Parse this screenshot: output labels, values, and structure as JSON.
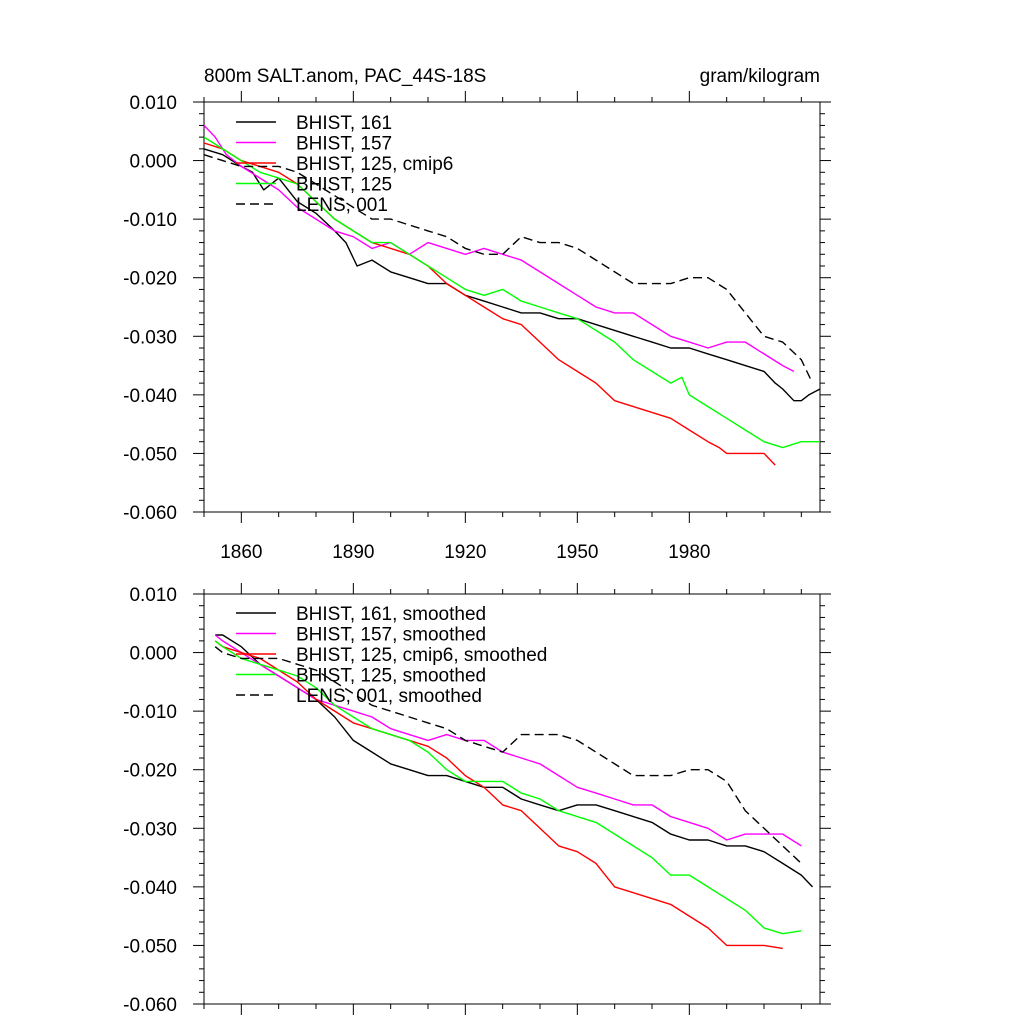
{
  "chart_data": [
    {
      "type": "line",
      "title": "800m SALT.anom, PAC_44S-18S",
      "units": "gram/kilogram",
      "xlim": [
        1850,
        2015
      ],
      "ylim": [
        -0.06,
        0.01
      ],
      "xticks": [
        1860,
        1890,
        1920,
        1950,
        1980
      ],
      "xtick_labels": [
        "1860",
        "1890",
        "1920",
        "1950",
        "1980"
      ],
      "yticks": [
        0.01,
        0.0,
        -0.01,
        -0.02,
        -0.03,
        -0.04,
        -0.05,
        -0.06
      ],
      "ytick_labels": [
        "0.010",
        "0.000",
        "-0.010",
        "-0.020",
        "-0.030",
        "-0.040",
        "-0.050",
        "-0.060"
      ],
      "grid": false,
      "legend_placement": "top-left",
      "series": [
        {
          "name": "BHIST, 161",
          "color": "#000000",
          "dash": "solid",
          "x": [
            1850,
            1855,
            1860,
            1863,
            1866,
            1870,
            1875,
            1880,
            1885,
            1888,
            1891,
            1895,
            1900,
            1905,
            1910,
            1915,
            1920,
            1925,
            1930,
            1935,
            1940,
            1945,
            1950,
            1955,
            1960,
            1965,
            1970,
            1975,
            1980,
            1985,
            1990,
            1995,
            2000,
            2003,
            2005,
            2008,
            2010,
            2012,
            2015
          ],
          "y": [
            0.002,
            0.001,
            -0.001,
            -0.002,
            -0.005,
            -0.003,
            -0.007,
            -0.009,
            -0.012,
            -0.014,
            -0.018,
            -0.017,
            -0.019,
            -0.02,
            -0.021,
            -0.021,
            -0.023,
            -0.024,
            -0.025,
            -0.026,
            -0.026,
            -0.027,
            -0.027,
            -0.028,
            -0.029,
            -0.03,
            -0.031,
            -0.032,
            -0.032,
            -0.033,
            -0.034,
            -0.035,
            -0.036,
            -0.038,
            -0.039,
            -0.041,
            -0.041,
            -0.04,
            -0.039
          ]
        },
        {
          "name": "BHIST, 157",
          "color": "#ff00ff",
          "dash": "solid",
          "x": [
            1850,
            1853,
            1856,
            1860,
            1865,
            1870,
            1875,
            1880,
            1885,
            1890,
            1895,
            1900,
            1905,
            1910,
            1915,
            1920,
            1925,
            1930,
            1935,
            1940,
            1945,
            1950,
            1955,
            1960,
            1965,
            1970,
            1975,
            1980,
            1985,
            1990,
            1995,
            2000,
            2005,
            2008
          ],
          "y": [
            0.006,
            0.004,
            0.001,
            -0.001,
            -0.003,
            -0.005,
            -0.008,
            -0.01,
            -0.012,
            -0.013,
            -0.015,
            -0.014,
            -0.016,
            -0.014,
            -0.015,
            -0.016,
            -0.015,
            -0.016,
            -0.017,
            -0.019,
            -0.021,
            -0.023,
            -0.025,
            -0.026,
            -0.026,
            -0.028,
            -0.03,
            -0.031,
            -0.032,
            -0.031,
            -0.031,
            -0.033,
            -0.035,
            -0.036
          ]
        },
        {
          "name": "BHIST, 125, cmip6",
          "color": "#ff0000",
          "dash": "solid",
          "x": [
            1850,
            1855,
            1860,
            1865,
            1870,
            1875,
            1880,
            1885,
            1890,
            1895,
            1900,
            1905,
            1910,
            1915,
            1920,
            1925,
            1930,
            1935,
            1940,
            1945,
            1950,
            1955,
            1960,
            1965,
            1970,
            1975,
            1980,
            1985,
            1988,
            1990,
            1995,
            2000,
            2003
          ],
          "y": [
            0.003,
            0.002,
            0.0,
            -0.001,
            -0.002,
            -0.004,
            -0.007,
            -0.01,
            -0.012,
            -0.014,
            -0.015,
            -0.016,
            -0.018,
            -0.021,
            -0.023,
            -0.025,
            -0.027,
            -0.028,
            -0.031,
            -0.034,
            -0.036,
            -0.038,
            -0.041,
            -0.042,
            -0.043,
            -0.044,
            -0.046,
            -0.048,
            -0.049,
            -0.05,
            -0.05,
            -0.05,
            -0.052
          ]
        },
        {
          "name": "BHIST, 125",
          "color": "#00ff00",
          "dash": "solid",
          "x": [
            1850,
            1855,
            1860,
            1865,
            1870,
            1875,
            1880,
            1885,
            1890,
            1895,
            1900,
            1905,
            1910,
            1915,
            1920,
            1925,
            1930,
            1935,
            1940,
            1945,
            1950,
            1955,
            1960,
            1965,
            1970,
            1975,
            1978,
            1980,
            1985,
            1990,
            1995,
            2000,
            2005,
            2010,
            2015
          ],
          "y": [
            0.004,
            0.002,
            0.0,
            -0.002,
            -0.003,
            -0.004,
            -0.007,
            -0.01,
            -0.012,
            -0.014,
            -0.014,
            -0.016,
            -0.018,
            -0.02,
            -0.022,
            -0.023,
            -0.022,
            -0.024,
            -0.025,
            -0.026,
            -0.027,
            -0.029,
            -0.031,
            -0.034,
            -0.036,
            -0.038,
            -0.037,
            -0.04,
            -0.042,
            -0.044,
            -0.046,
            -0.048,
            -0.049,
            -0.048,
            -0.048
          ]
        },
        {
          "name": "LENS, 001",
          "color": "#000000",
          "dash": "dashed",
          "x": [
            1850,
            1855,
            1860,
            1865,
            1870,
            1875,
            1880,
            1885,
            1890,
            1895,
            1900,
            1905,
            1910,
            1915,
            1920,
            1925,
            1930,
            1935,
            1940,
            1945,
            1950,
            1955,
            1960,
            1965,
            1970,
            1975,
            1980,
            1985,
            1990,
            1995,
            2000,
            2005,
            2010,
            2013
          ],
          "y": [
            0.001,
            0.0,
            -0.001,
            -0.001,
            -0.001,
            -0.002,
            -0.004,
            -0.006,
            -0.008,
            -0.01,
            -0.01,
            -0.011,
            -0.012,
            -0.013,
            -0.015,
            -0.016,
            -0.016,
            -0.013,
            -0.014,
            -0.014,
            -0.015,
            -0.017,
            -0.019,
            -0.021,
            -0.021,
            -0.021,
            -0.02,
            -0.02,
            -0.022,
            -0.026,
            -0.03,
            -0.031,
            -0.034,
            -0.038
          ]
        }
      ]
    },
    {
      "type": "line",
      "title": "",
      "xlim": [
        1850,
        2015
      ],
      "ylim": [
        -0.06,
        0.01
      ],
      "xticks": [
        1860,
        1890,
        1920,
        1950,
        1980
      ],
      "xtick_labels": [],
      "yticks": [
        0.01,
        0.0,
        -0.01,
        -0.02,
        -0.03,
        -0.04,
        -0.05,
        -0.06
      ],
      "ytick_labels": [
        "0.010",
        "0.000",
        "-0.010",
        "-0.020",
        "-0.030",
        "-0.040",
        "-0.050",
        "-0.060"
      ],
      "grid": false,
      "legend_placement": "top-left",
      "series": [
        {
          "name": "BHIST, 161, smoothed",
          "color": "#000000",
          "dash": "solid",
          "x": [
            1853,
            1855,
            1860,
            1865,
            1870,
            1875,
            1880,
            1885,
            1890,
            1895,
            1900,
            1905,
            1910,
            1915,
            1920,
            1925,
            1930,
            1935,
            1940,
            1945,
            1950,
            1955,
            1960,
            1965,
            1970,
            1975,
            1980,
            1985,
            1990,
            1995,
            2000,
            2005,
            2010,
            2013
          ],
          "y": [
            0.003,
            0.003,
            0.001,
            -0.002,
            -0.004,
            -0.006,
            -0.008,
            -0.011,
            -0.015,
            -0.017,
            -0.019,
            -0.02,
            -0.021,
            -0.021,
            -0.022,
            -0.023,
            -0.023,
            -0.025,
            -0.026,
            -0.027,
            -0.026,
            -0.026,
            -0.027,
            -0.028,
            -0.029,
            -0.031,
            -0.032,
            -0.032,
            -0.033,
            -0.033,
            -0.034,
            -0.036,
            -0.038,
            -0.04
          ]
        },
        {
          "name": "BHIST, 157, smoothed",
          "color": "#ff00ff",
          "dash": "solid",
          "x": [
            1853,
            1855,
            1860,
            1865,
            1870,
            1875,
            1880,
            1885,
            1890,
            1895,
            1900,
            1905,
            1910,
            1915,
            1920,
            1925,
            1930,
            1935,
            1940,
            1945,
            1950,
            1955,
            1960,
            1965,
            1970,
            1975,
            1980,
            1985,
            1990,
            1995,
            2000,
            2005,
            2010
          ],
          "y": [
            0.003,
            0.002,
            0.0,
            -0.002,
            -0.004,
            -0.006,
            -0.008,
            -0.009,
            -0.01,
            -0.011,
            -0.013,
            -0.014,
            -0.015,
            -0.014,
            -0.015,
            -0.015,
            -0.017,
            -0.018,
            -0.019,
            -0.021,
            -0.023,
            -0.024,
            -0.025,
            -0.026,
            -0.026,
            -0.028,
            -0.029,
            -0.03,
            -0.032,
            -0.031,
            -0.031,
            -0.031,
            -0.033
          ]
        },
        {
          "name": "BHIST, 125, cmip6, smoothed",
          "color": "#ff0000",
          "dash": "solid",
          "x": [
            1853,
            1855,
            1860,
            1865,
            1870,
            1875,
            1880,
            1885,
            1890,
            1895,
            1900,
            1905,
            1910,
            1915,
            1920,
            1925,
            1930,
            1935,
            1940,
            1945,
            1950,
            1955,
            1960,
            1965,
            1970,
            1975,
            1980,
            1985,
            1990,
            1995,
            2000,
            2005
          ],
          "y": [
            0.002,
            0.001,
            0.0,
            -0.001,
            -0.003,
            -0.005,
            -0.008,
            -0.01,
            -0.012,
            -0.013,
            -0.014,
            -0.015,
            -0.016,
            -0.018,
            -0.021,
            -0.023,
            -0.026,
            -0.027,
            -0.03,
            -0.033,
            -0.034,
            -0.036,
            -0.04,
            -0.041,
            -0.042,
            -0.043,
            -0.045,
            -0.047,
            -0.05,
            -0.05,
            -0.05,
            -0.0505
          ]
        },
        {
          "name": "BHIST, 125, smoothed",
          "color": "#00ff00",
          "dash": "solid",
          "x": [
            1853,
            1855,
            1860,
            1865,
            1870,
            1875,
            1880,
            1885,
            1890,
            1895,
            1900,
            1905,
            1910,
            1915,
            1920,
            1925,
            1930,
            1935,
            1940,
            1945,
            1950,
            1955,
            1960,
            1965,
            1970,
            1975,
            1980,
            1985,
            1990,
            1995,
            2000,
            2005,
            2010
          ],
          "y": [
            0.002,
            0.001,
            -0.001,
            -0.002,
            -0.003,
            -0.004,
            -0.006,
            -0.009,
            -0.011,
            -0.013,
            -0.014,
            -0.015,
            -0.017,
            -0.02,
            -0.022,
            -0.022,
            -0.022,
            -0.024,
            -0.025,
            -0.027,
            -0.028,
            -0.029,
            -0.031,
            -0.033,
            -0.035,
            -0.038,
            -0.038,
            -0.04,
            -0.042,
            -0.044,
            -0.047,
            -0.048,
            -0.0475
          ]
        },
        {
          "name": "LENS, 001, smoothed",
          "color": "#000000",
          "dash": "dashed",
          "x": [
            1853,
            1855,
            1860,
            1865,
            1870,
            1875,
            1880,
            1885,
            1890,
            1895,
            1900,
            1905,
            1910,
            1915,
            1920,
            1925,
            1930,
            1935,
            1940,
            1945,
            1950,
            1955,
            1960,
            1965,
            1970,
            1975,
            1980,
            1985,
            1990,
            1995,
            2000,
            2005,
            2010
          ],
          "y": [
            0.001,
            0.0,
            -0.001,
            -0.001,
            -0.001,
            -0.002,
            -0.003,
            -0.005,
            -0.007,
            -0.009,
            -0.01,
            -0.011,
            -0.012,
            -0.013,
            -0.015,
            -0.016,
            -0.017,
            -0.014,
            -0.014,
            -0.014,
            -0.015,
            -0.017,
            -0.019,
            -0.021,
            -0.021,
            -0.021,
            -0.02,
            -0.02,
            -0.022,
            -0.027,
            -0.03,
            -0.033,
            -0.036
          ]
        }
      ]
    }
  ]
}
